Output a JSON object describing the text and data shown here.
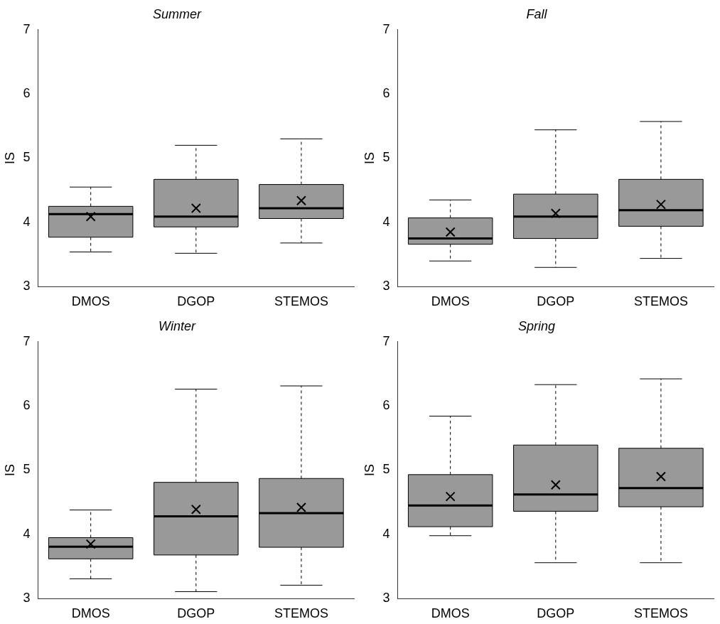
{
  "chart_data": [
    {
      "type": "box",
      "title": "Summer",
      "ylabel": "IS",
      "categories": [
        "DMOS",
        "DGOP",
        "STEMOS"
      ],
      "color": "#999999",
      "ylim": [
        3,
        7
      ],
      "yticks": [
        3,
        4,
        5,
        6,
        7
      ],
      "grid": false,
      "legend": false,
      "boxes": [
        {
          "low": 3.54,
          "q1": 3.77,
          "median": 4.13,
          "q3": 4.25,
          "high": 4.55,
          "mean": 4.09
        },
        {
          "low": 3.52,
          "q1": 3.93,
          "median": 4.09,
          "q3": 4.67,
          "high": 5.2,
          "mean": 4.22
        },
        {
          "low": 3.68,
          "q1": 4.06,
          "median": 4.22,
          "q3": 4.59,
          "high": 5.3,
          "mean": 4.34
        }
      ]
    },
    {
      "type": "box",
      "title": "Fall",
      "ylabel": "IS",
      "categories": [
        "DMOS",
        "DGOP",
        "STEMOS"
      ],
      "color": "#999999",
      "ylim": [
        3,
        7
      ],
      "yticks": [
        3,
        4,
        5,
        6,
        7
      ],
      "grid": false,
      "legend": false,
      "boxes": [
        {
          "low": 3.4,
          "q1": 3.66,
          "median": 3.75,
          "q3": 4.07,
          "high": 4.35,
          "mean": 3.85
        },
        {
          "low": 3.3,
          "q1": 3.75,
          "median": 4.09,
          "q3": 4.44,
          "high": 5.44,
          "mean": 4.14
        },
        {
          "low": 3.44,
          "q1": 3.94,
          "median": 4.19,
          "q3": 4.67,
          "high": 5.57,
          "mean": 4.28
        }
      ]
    },
    {
      "type": "box",
      "title": "Winter",
      "ylabel": "IS",
      "categories": [
        "DMOS",
        "DGOP",
        "STEMOS"
      ],
      "color": "#999999",
      "ylim": [
        3,
        7
      ],
      "yticks": [
        3,
        4,
        5,
        6,
        7
      ],
      "grid": false,
      "legend": false,
      "boxes": [
        {
          "low": 3.31,
          "q1": 3.62,
          "median": 3.81,
          "q3": 3.95,
          "high": 4.38,
          "mean": 3.85
        },
        {
          "low": 3.11,
          "q1": 3.68,
          "median": 4.28,
          "q3": 4.81,
          "high": 6.26,
          "mean": 4.39
        },
        {
          "low": 3.21,
          "q1": 3.8,
          "median": 4.33,
          "q3": 4.87,
          "high": 6.31,
          "mean": 4.42
        }
      ]
    },
    {
      "type": "box",
      "title": "Spring",
      "ylabel": "IS",
      "categories": [
        "DMOS",
        "DGOP",
        "STEMOS"
      ],
      "color": "#999999",
      "ylim": [
        3,
        7
      ],
      "yticks": [
        3,
        4,
        5,
        6,
        7
      ],
      "grid": false,
      "legend": false,
      "boxes": [
        {
          "low": 3.98,
          "q1": 4.12,
          "median": 4.45,
          "q3": 4.93,
          "high": 5.84,
          "mean": 4.59
        },
        {
          "low": 3.56,
          "q1": 4.36,
          "median": 4.62,
          "q3": 5.39,
          "high": 6.33,
          "mean": 4.77
        },
        {
          "low": 3.56,
          "q1": 4.43,
          "median": 4.72,
          "q3": 5.34,
          "high": 6.42,
          "mean": 4.9
        }
      ]
    }
  ]
}
